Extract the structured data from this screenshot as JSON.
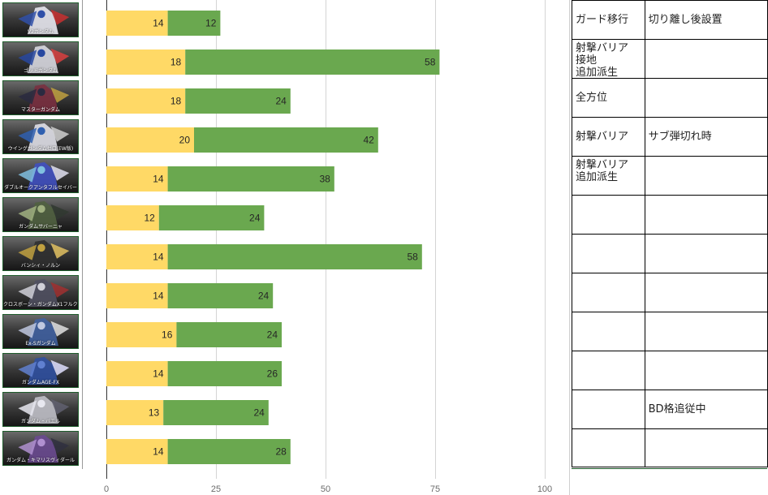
{
  "units": [
    {
      "name": "V2ガンダム"
    },
    {
      "name": "ゴッドガンダム"
    },
    {
      "name": "マスターガンダム"
    },
    {
      "name": "ウイングガンダムゼロ(EW版)"
    },
    {
      "name": "ダブルオークアンタフルセイバー"
    },
    {
      "name": "ガンダムサバーニャ"
    },
    {
      "name": "バンシィ・ノルン"
    },
    {
      "name": "クロスボーン・ガンダムX1フルクロス"
    },
    {
      "name": "Ex-Sガンダム"
    },
    {
      "name": "ガンダムAGE-FX"
    },
    {
      "name": "ガンダム・バエル"
    },
    {
      "name": "ガンダム・キマリスヴィダール"
    }
  ],
  "chart_data": {
    "type": "bar",
    "orientation": "horizontal",
    "stacked": true,
    "categories": [
      "V2ガンダム",
      "ゴッドガンダム",
      "マスターガンダム",
      "ウイングガンダムゼロ(EW版)",
      "ダブルオークアンタフルセイバー",
      "ガンダムサバーニャ",
      "バンシィ・ノルン",
      "クロスボーン・ガンダムX1フルクロス",
      "Ex-Sガンダム",
      "ガンダムAGE-FX",
      "ガンダム・バエル",
      "ガンダム・キマリスヴィダール"
    ],
    "series": [
      {
        "values": [
          14,
          18,
          18,
          20,
          14,
          12,
          14,
          14,
          16,
          14,
          13,
          14
        ],
        "color": "#ffd966"
      },
      {
        "values": [
          12,
          58,
          24,
          42,
          38,
          24,
          58,
          24,
          24,
          26,
          24,
          28
        ],
        "color": "#6aa84f"
      }
    ],
    "xlim": [
      0,
      100
    ],
    "xticks": [
      "0",
      "25",
      "50",
      "75",
      "100"
    ],
    "grid": true,
    "title": "",
    "xlabel": "",
    "ylabel": ""
  },
  "table": {
    "rows": [
      [
        "ガード移行",
        "切り離し後設置"
      ],
      [
        "射撃バリア\n接地\n追加派生",
        ""
      ],
      [
        "全方位",
        ""
      ],
      [
        "射撃バリア",
        "サブ弾切れ時"
      ],
      [
        "射撃バリア\n追加派生",
        ""
      ],
      [
        "",
        ""
      ],
      [
        "",
        ""
      ],
      [
        "",
        ""
      ],
      [
        "",
        ""
      ],
      [
        "",
        ""
      ],
      [
        "",
        "BD格追従中"
      ],
      [
        "",
        ""
      ]
    ]
  }
}
